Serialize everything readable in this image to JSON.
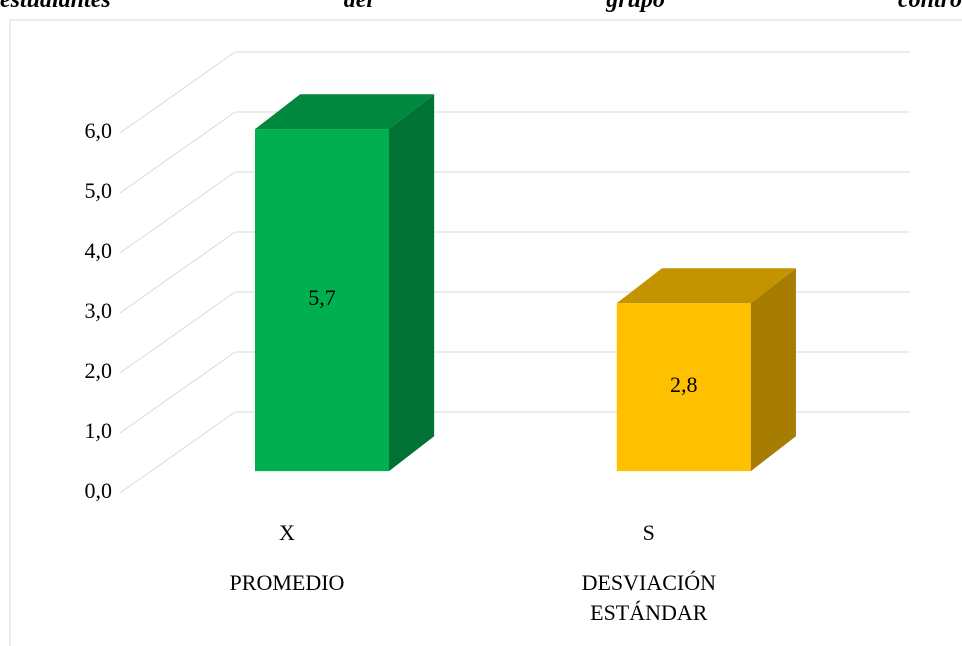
{
  "caption": [
    "estudiantes",
    "del",
    "grupo",
    "contro"
  ],
  "chart_data": {
    "type": "bar3d",
    "categories": [
      "X",
      "S"
    ],
    "sublabels": [
      "PROMEDIO",
      "DESVIACIÓN ESTÁNDAR"
    ],
    "values": [
      5.7,
      2.8
    ],
    "value_labels": [
      "5,7",
      "2,8"
    ],
    "colors": [
      "#00b050",
      "#ffc000"
    ],
    "ylim": [
      0,
      6
    ],
    "yticks": [
      {
        "value": 0,
        "label": "0,0"
      },
      {
        "value": 1,
        "label": "1,0"
      },
      {
        "value": 2,
        "label": "2,0"
      },
      {
        "value": 3,
        "label": "3,0"
      },
      {
        "value": 4,
        "label": "4,0"
      },
      {
        "value": 5,
        "label": "5,0"
      },
      {
        "value": 6,
        "label": "6,0"
      }
    ],
    "grid": true
  }
}
